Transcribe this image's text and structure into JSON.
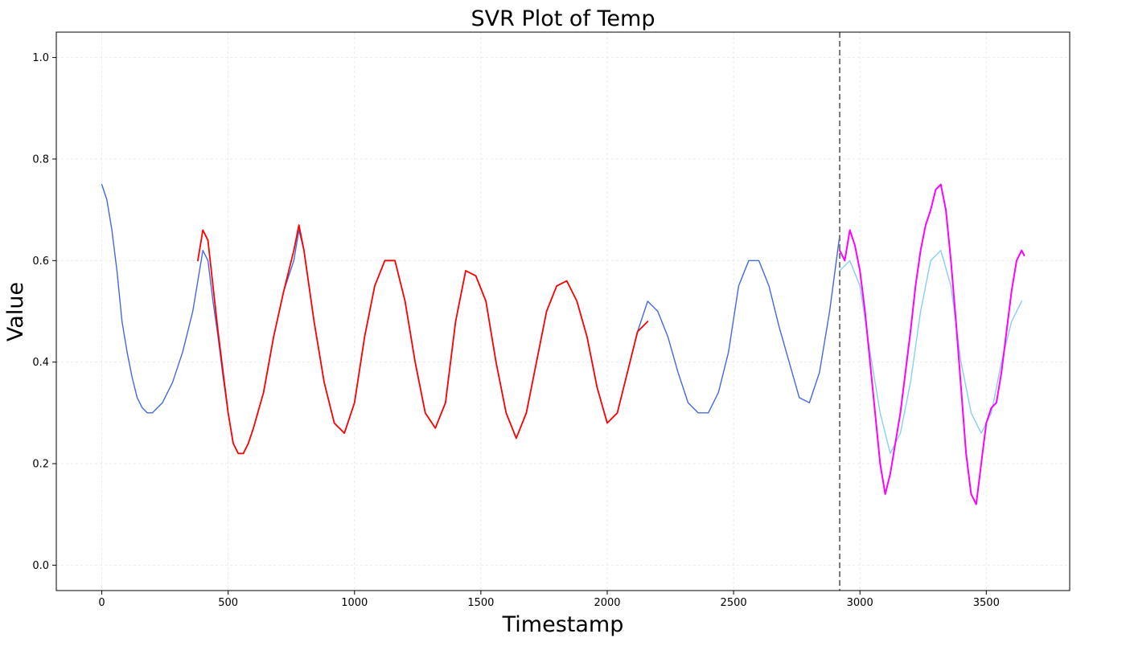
{
  "chart_data": {
    "type": "line",
    "title": "SVR Plot of Temp",
    "xlabel": "Timestamp",
    "ylabel": "Value",
    "xlim": [
      -180,
      3830
    ],
    "ylim": [
      -0.05,
      1.05
    ],
    "x_ticks": [
      0,
      500,
      1000,
      1500,
      2000,
      2500,
      3000,
      3500
    ],
    "x_tick_labels": [
      "0",
      "500",
      "1000",
      "1500",
      "2000",
      "2500",
      "3000",
      "3500"
    ],
    "y_ticks": [
      0.0,
      0.2,
      0.4,
      0.6,
      0.8,
      1.0
    ],
    "y_tick_labels": [
      "0.0",
      "0.2",
      "0.4",
      "0.6",
      "0.8",
      "1.0"
    ],
    "grid": true,
    "legend": "none",
    "split_x": 2920,
    "series": [
      {
        "role": "train-actual",
        "color": "#4169E1",
        "x": [
          0,
          20,
          40,
          60,
          80,
          100,
          120,
          140,
          160,
          180,
          200,
          240,
          280,
          320,
          360,
          380,
          400,
          420,
          440,
          460,
          480,
          500,
          520,
          540,
          560,
          580,
          600,
          640,
          680,
          720,
          760,
          780,
          800,
          840,
          880,
          920,
          960,
          1000,
          1040,
          1080,
          1120,
          1160,
          1200,
          1240,
          1280,
          1320,
          1360,
          1400,
          1440,
          1480,
          1520,
          1560,
          1600,
          1640,
          1680,
          1720,
          1760,
          1800,
          1840,
          1880,
          1920,
          1960,
          2000,
          2040,
          2080,
          2120,
          2160,
          2200,
          2240,
          2280,
          2320,
          2360,
          2400,
          2440,
          2480,
          2520,
          2560,
          2600,
          2640,
          2680,
          2720,
          2760,
          2800,
          2840,
          2880,
          2920
        ],
        "values": [
          0.75,
          0.72,
          0.66,
          0.58,
          0.48,
          0.42,
          0.37,
          0.33,
          0.31,
          0.3,
          0.3,
          0.32,
          0.36,
          0.42,
          0.5,
          0.56,
          0.62,
          0.6,
          0.52,
          0.45,
          0.37,
          0.3,
          0.24,
          0.22,
          0.22,
          0.24,
          0.27,
          0.34,
          0.45,
          0.54,
          0.6,
          0.66,
          0.62,
          0.48,
          0.36,
          0.28,
          0.26,
          0.32,
          0.45,
          0.55,
          0.6,
          0.6,
          0.52,
          0.4,
          0.3,
          0.27,
          0.32,
          0.48,
          0.58,
          0.57,
          0.52,
          0.4,
          0.3,
          0.25,
          0.3,
          0.4,
          0.5,
          0.55,
          0.56,
          0.52,
          0.45,
          0.35,
          0.28,
          0.3,
          0.38,
          0.46,
          0.52,
          0.5,
          0.45,
          0.38,
          0.32,
          0.3,
          0.3,
          0.34,
          0.42,
          0.55,
          0.6,
          0.6,
          0.55,
          0.47,
          0.4,
          0.33,
          0.32,
          0.38,
          0.5,
          0.65
        ]
      },
      {
        "role": "train-fitted",
        "color": "#FF0000",
        "x": [
          380,
          400,
          420,
          440,
          460,
          480,
          500,
          520,
          540,
          560,
          580,
          600,
          640,
          680,
          720,
          760,
          780,
          800,
          840,
          880,
          920,
          960,
          1000,
          1040,
          1080,
          1120,
          1160,
          1200,
          1240,
          1280,
          1320,
          1360,
          1400,
          1440,
          1480,
          1520,
          1560,
          1600,
          1640,
          1680,
          1720,
          1760,
          1800,
          1840,
          1880,
          1920,
          1960,
          2000,
          2040,
          2080,
          2120,
          2160
        ],
        "values": [
          0.6,
          0.66,
          0.64,
          0.55,
          0.46,
          0.38,
          0.3,
          0.24,
          0.22,
          0.22,
          0.24,
          0.27,
          0.34,
          0.45,
          0.54,
          0.62,
          0.67,
          0.62,
          0.48,
          0.36,
          0.28,
          0.26,
          0.32,
          0.45,
          0.55,
          0.6,
          0.6,
          0.52,
          0.4,
          0.3,
          0.27,
          0.32,
          0.48,
          0.58,
          0.57,
          0.52,
          0.4,
          0.3,
          0.25,
          0.3,
          0.4,
          0.5,
          0.55,
          0.56,
          0.52,
          0.45,
          0.35,
          0.28,
          0.3,
          0.38,
          0.46,
          0.48
        ]
      },
      {
        "role": "test-actual",
        "color": "#87CEFA",
        "x": [
          2920,
          2960,
          3000,
          3040,
          3080,
          3120,
          3160,
          3200,
          3240,
          3280,
          3320,
          3360,
          3400,
          3440,
          3480,
          3520,
          3560,
          3600,
          3640
        ],
        "values": [
          0.58,
          0.6,
          0.55,
          0.42,
          0.3,
          0.22,
          0.26,
          0.36,
          0.5,
          0.6,
          0.62,
          0.55,
          0.4,
          0.3,
          0.26,
          0.3,
          0.4,
          0.48,
          0.52
        ]
      },
      {
        "role": "test-predicted",
        "color": "#FF00FF",
        "x": [
          2920,
          2940,
          2960,
          2980,
          3000,
          3020,
          3040,
          3060,
          3080,
          3100,
          3120,
          3140,
          3160,
          3180,
          3200,
          3220,
          3240,
          3260,
          3280,
          3300,
          3320,
          3340,
          3360,
          3380,
          3400,
          3420,
          3440,
          3460,
          3480,
          3500,
          3520,
          3540,
          3560,
          3580,
          3600,
          3620,
          3640,
          3650
        ],
        "values": [
          0.62,
          0.6,
          0.66,
          0.63,
          0.58,
          0.5,
          0.4,
          0.3,
          0.2,
          0.14,
          0.18,
          0.24,
          0.3,
          0.38,
          0.46,
          0.55,
          0.62,
          0.67,
          0.7,
          0.74,
          0.75,
          0.7,
          0.6,
          0.48,
          0.35,
          0.22,
          0.14,
          0.12,
          0.2,
          0.28,
          0.31,
          0.32,
          0.38,
          0.46,
          0.54,
          0.6,
          0.62,
          0.61
        ]
      }
    ]
  }
}
